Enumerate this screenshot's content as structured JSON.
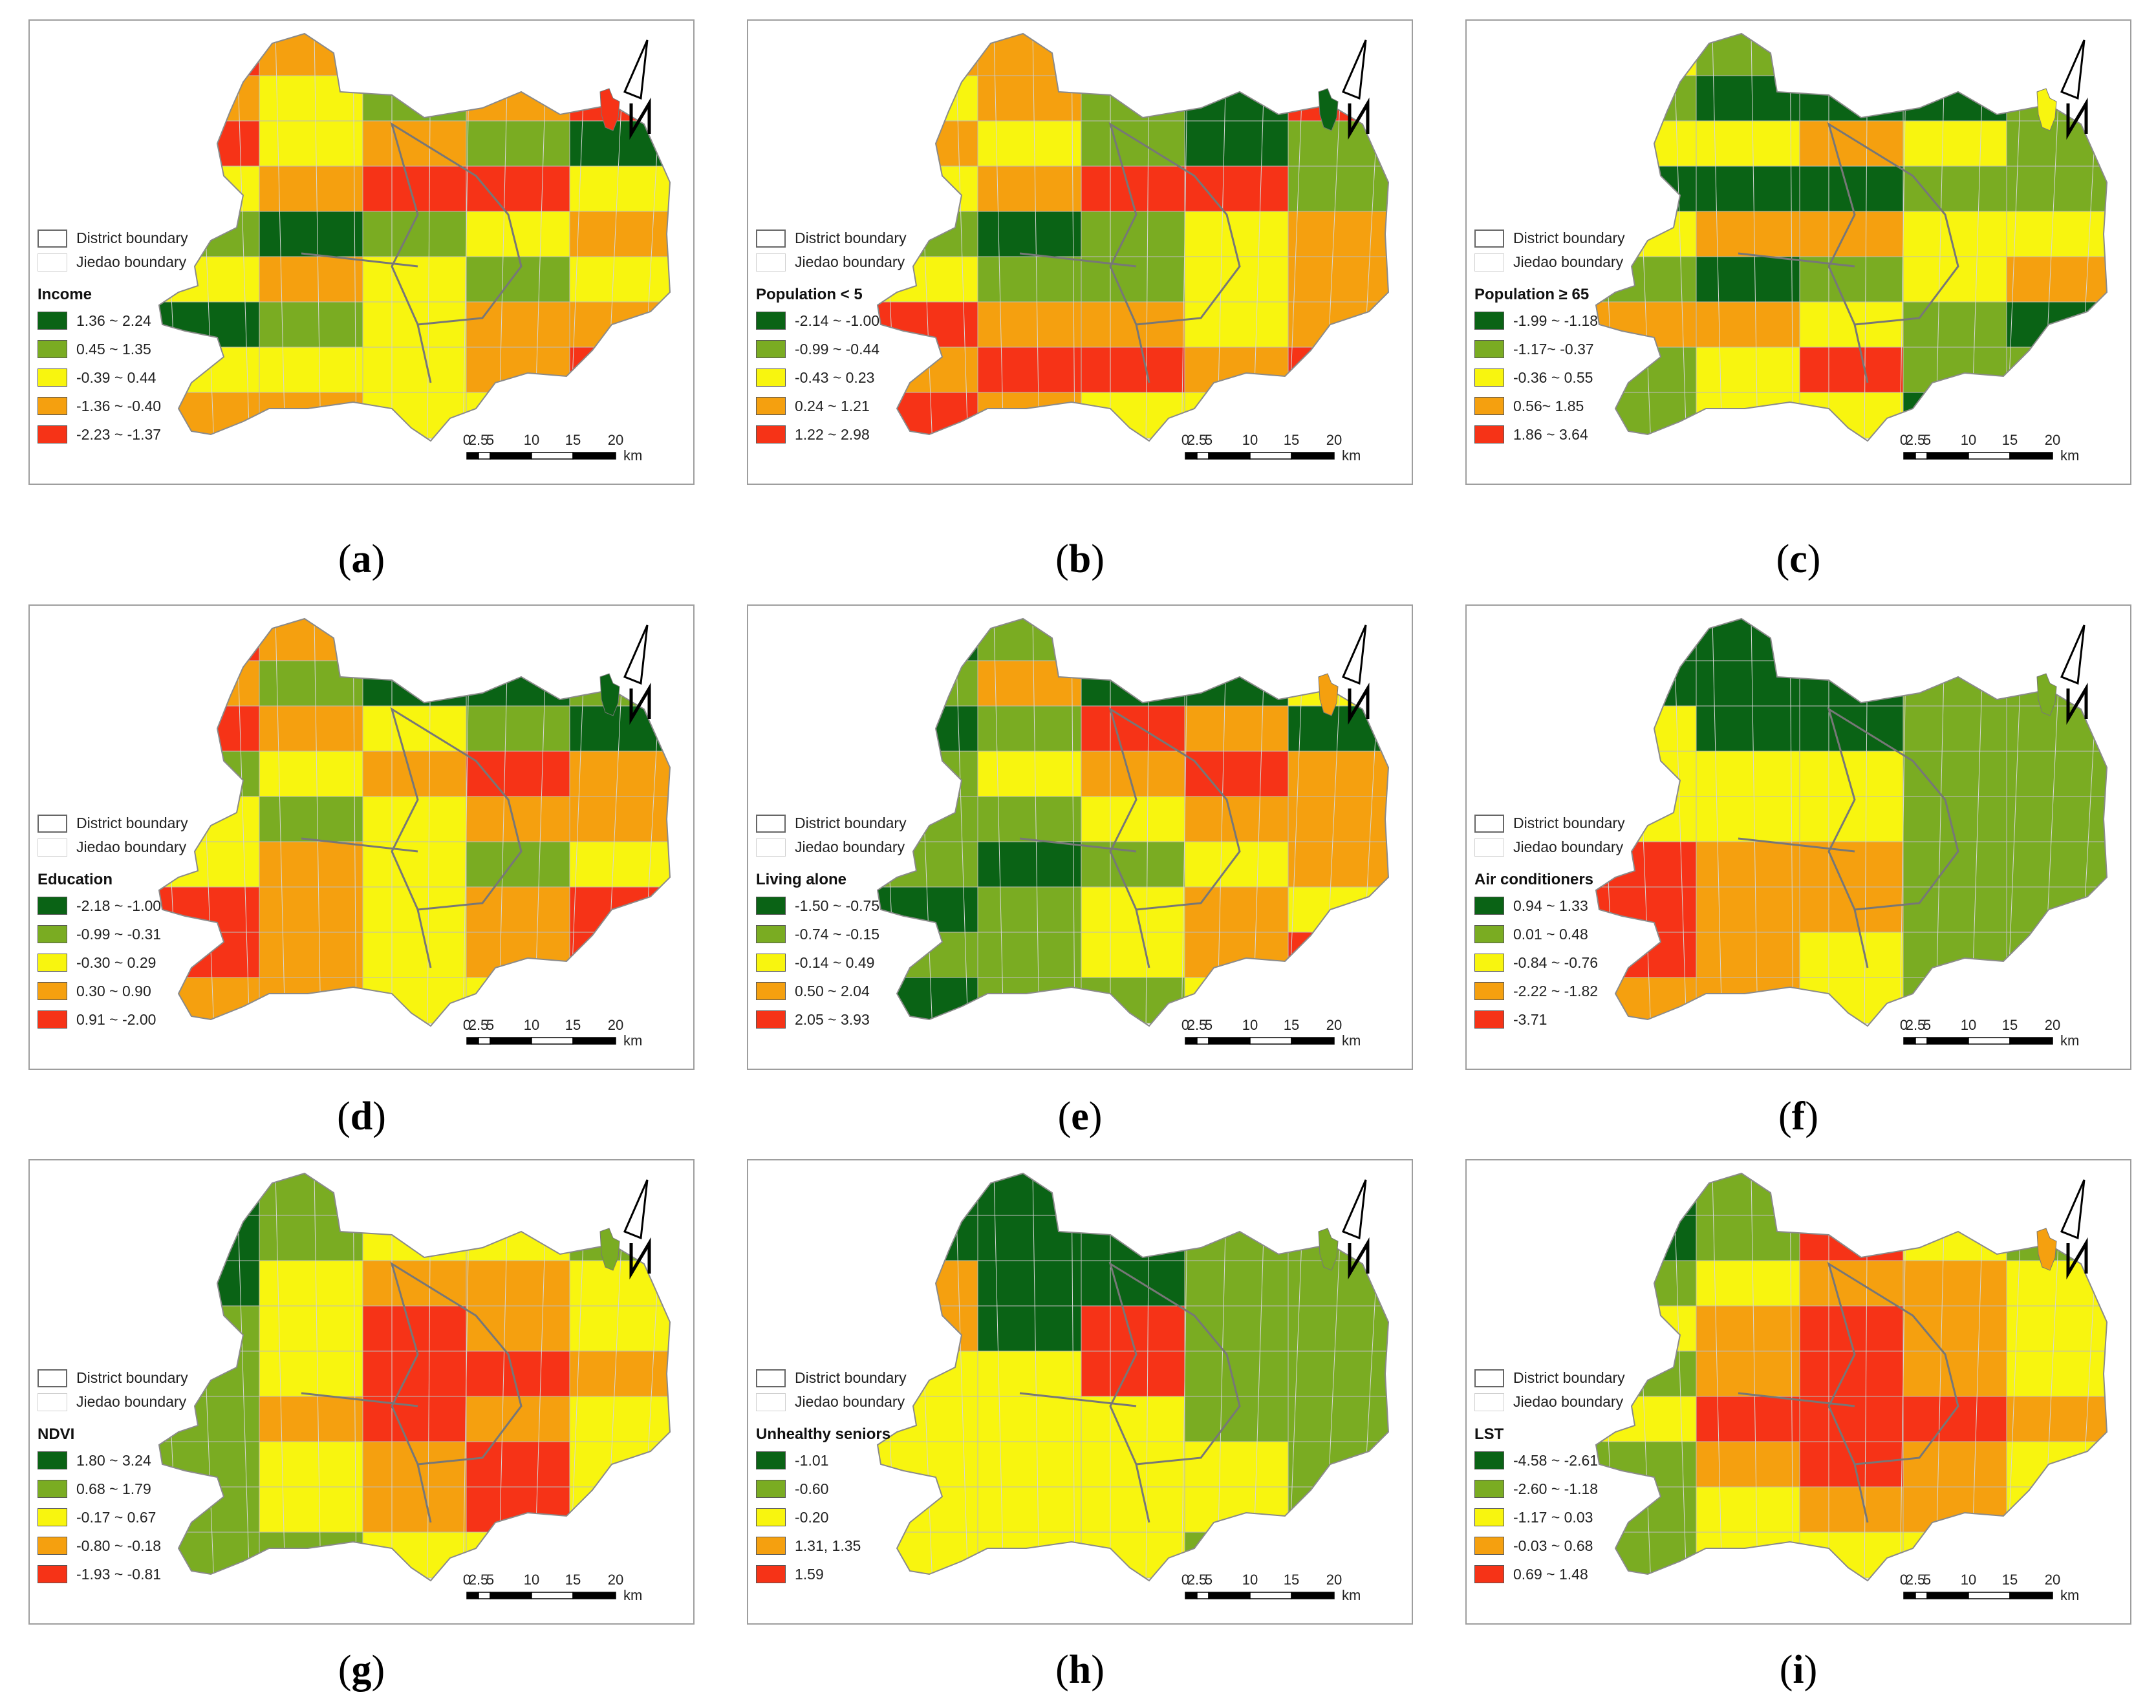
{
  "legend_common": {
    "district": "District boundary",
    "jiedao": "Jiedao boundary"
  },
  "scale": {
    "labels": [
      "0",
      "2.5",
      "5",
      "10",
      "15",
      "20"
    ],
    "unit": "km"
  },
  "colors": {
    "c1": "#0a6315",
    "c2": "#7aac22",
    "c3": "#f8f50f",
    "c4": "#f5a00f",
    "c5": "#f63317"
  },
  "panels": [
    {
      "letter": "a",
      "title": "Income",
      "classes": [
        "1.36 ~ 2.24",
        "0.45 ~ 1.35",
        "-0.39 ~ 0.44",
        "-1.36 ~ -0.40",
        "-2.23 ~ -1.37"
      ],
      "inset": 5,
      "map_values": [
        5,
        4,
        3,
        5,
        5,
        4,
        3,
        2,
        4,
        5,
        5,
        3,
        4,
        2,
        1,
        3,
        4,
        5,
        5,
        3,
        2,
        1,
        2,
        3,
        4,
        3,
        4,
        3,
        2,
        3,
        1,
        2,
        3,
        4,
        4,
        3,
        3,
        3,
        4,
        5,
        4,
        4,
        3,
        3,
        4
      ]
    },
    {
      "letter": "b",
      "title": "Population < 5",
      "classes": [
        "-2.14 ~ -1.00",
        "-0.99 ~ -0.44",
        "-0.43 ~ 0.23",
        "0.24 ~ 1.21",
        "1.22 ~ 2.98"
      ],
      "inset": 1,
      "map_values": [
        4,
        4,
        5,
        4,
        4,
        3,
        4,
        2,
        1,
        5,
        4,
        3,
        2,
        1,
        2,
        3,
        4,
        5,
        5,
        2,
        2,
        1,
        2,
        3,
        4,
        3,
        2,
        2,
        3,
        4,
        5,
        4,
        4,
        3,
        4,
        4,
        5,
        5,
        4,
        5,
        5,
        4,
        3,
        3,
        4
      ]
    },
    {
      "letter": "c",
      "title": "Population ≥ 65",
      "classes": [
        "-1.99 ~ -1.18",
        "-1.17~ -0.37",
        "-0.36 ~ 0.55",
        "0.56~ 1.85",
        "1.86 ~ 3.64"
      ],
      "inset": 3,
      "map_values": [
        3,
        2,
        1,
        1,
        2,
        2,
        1,
        1,
        1,
        2,
        3,
        3,
        4,
        3,
        2,
        1,
        1,
        1,
        2,
        2,
        3,
        4,
        4,
        3,
        3,
        2,
        1,
        2,
        3,
        4,
        4,
        4,
        3,
        2,
        1,
        2,
        3,
        5,
        2,
        2,
        2,
        3,
        3,
        1,
        1
      ]
    },
    {
      "letter": "d",
      "title": "Education",
      "classes": [
        "-2.18 ~ -1.00",
        "-0.99 ~ -0.31",
        "-0.30 ~ 0.29",
        "0.30 ~ 0.90",
        "0.91 ~ -2.00"
      ],
      "inset": 1,
      "map_values": [
        5,
        4,
        3,
        5,
        5,
        4,
        2,
        1,
        1,
        2,
        5,
        4,
        3,
        2,
        1,
        2,
        3,
        4,
        5,
        4,
        3,
        2,
        3,
        4,
        4,
        3,
        4,
        3,
        2,
        3,
        5,
        4,
        3,
        4,
        5,
        5,
        4,
        3,
        4,
        5,
        4,
        4,
        3,
        3,
        4
      ]
    },
    {
      "letter": "e",
      "title": "Living alone",
      "classes": [
        "-1.50 ~ -0.75",
        "-0.74 ~ -0.15",
        "-0.14 ~ 0.49",
        "0.50 ~ 2.04",
        "2.05 ~ 3.93"
      ],
      "inset": 4,
      "map_values": [
        1,
        2,
        4,
        3,
        1,
        2,
        4,
        1,
        1,
        3,
        1,
        2,
        5,
        4,
        1,
        2,
        3,
        4,
        5,
        4,
        2,
        2,
        3,
        4,
        4,
        2,
        1,
        2,
        3,
        4,
        1,
        2,
        3,
        4,
        3,
        2,
        2,
        3,
        4,
        5,
        1,
        2,
        2,
        3,
        4
      ]
    },
    {
      "letter": "f",
      "title": "Air conditioners",
      "classes": [
        "0.94 ~ 1.33",
        "0.01 ~ 0.48",
        "-0.84 ~ -0.76",
        "-2.22 ~ -1.82",
        "-3.71"
      ],
      "inset": 2,
      "map_values": [
        1,
        1,
        1,
        2,
        2,
        1,
        1,
        1,
        2,
        2,
        3,
        1,
        1,
        2,
        2,
        3,
        3,
        3,
        2,
        2,
        3,
        3,
        3,
        2,
        2,
        5,
        4,
        4,
        2,
        2,
        5,
        4,
        4,
        2,
        2,
        5,
        4,
        3,
        2,
        2,
        4,
        4,
        3,
        2,
        2
      ]
    },
    {
      "letter": "g",
      "title": "NDVI",
      "classes": [
        "1.80 ~ 3.24",
        "0.68 ~ 1.79",
        "-0.17 ~ 0.67",
        "-0.80 ~ -0.18",
        "-1.93 ~ -0.81"
      ],
      "inset": 2,
      "map_values": [
        1,
        2,
        3,
        2,
        2,
        1,
        2,
        3,
        3,
        2,
        1,
        3,
        4,
        4,
        3,
        2,
        3,
        5,
        4,
        3,
        2,
        3,
        5,
        5,
        4,
        2,
        4,
        5,
        4,
        3,
        2,
        3,
        4,
        5,
        3,
        2,
        3,
        4,
        5,
        3,
        2,
        2,
        3,
        3,
        2
      ]
    },
    {
      "letter": "h",
      "title": "Unhealthy seniors",
      "classes": [
        "-1.01",
        "-0.60",
        "-0.20",
        "1.31, 1.35",
        "1.59"
      ],
      "inset": 2,
      "map_values": [
        1,
        1,
        1,
        2,
        2,
        1,
        1,
        1,
        2,
        2,
        4,
        1,
        1,
        2,
        2,
        4,
        1,
        5,
        2,
        2,
        3,
        3,
        5,
        2,
        2,
        3,
        3,
        3,
        2,
        2,
        3,
        3,
        3,
        3,
        2,
        3,
        3,
        3,
        3,
        2,
        3,
        3,
        3,
        2,
        2
      ]
    },
    {
      "letter": "i",
      "title": "LST",
      "classes": [
        "-4.58 ~ -2.61",
        "-2.60 ~ -1.18",
        "-1.17 ~ 0.03",
        "-0.03 ~ 0.68",
        "0.69 ~ 1.48"
      ],
      "inset": 4,
      "map_values": [
        1,
        2,
        3,
        2,
        2,
        1,
        2,
        5,
        3,
        2,
        2,
        3,
        4,
        4,
        3,
        3,
        4,
        5,
        4,
        3,
        2,
        4,
        5,
        4,
        3,
        3,
        5,
        5,
        5,
        4,
        2,
        4,
        5,
        4,
        3,
        2,
        3,
        4,
        4,
        3,
        2,
        3,
        3,
        3,
        2
      ]
    }
  ]
}
